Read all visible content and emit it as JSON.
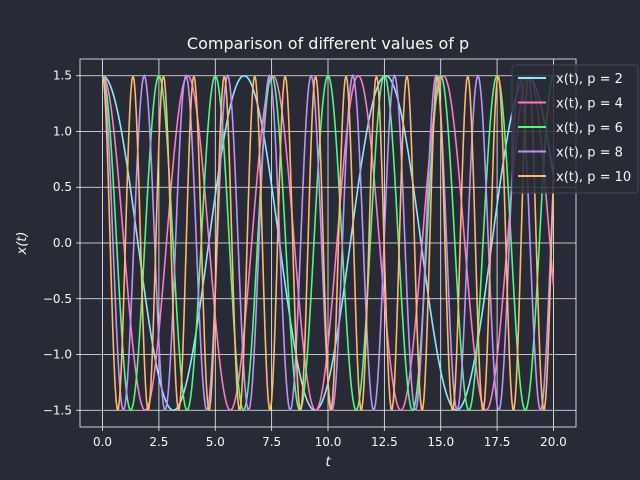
{
  "chart_data": {
    "type": "line",
    "title": "Comparison of different values of p",
    "xlabel": "t",
    "ylabel": "x(t)",
    "xlim": [
      -1.0,
      21.0
    ],
    "ylim": [
      -1.65,
      1.65
    ],
    "xticks": [
      0.0,
      2.5,
      5.0,
      7.5,
      10.0,
      12.5,
      15.0,
      17.5,
      20.0
    ],
    "xtick_labels": [
      "0.0",
      "2.5",
      "5.0",
      "7.5",
      "10.0",
      "12.5",
      "15.0",
      "17.5",
      "20.0"
    ],
    "yticks": [
      -1.5,
      -1.0,
      -0.5,
      0.0,
      0.5,
      1.0,
      1.5
    ],
    "ytick_labels": [
      "−1.5",
      "−1.0",
      "−0.5",
      "0.0",
      "0.5",
      "1.0",
      "1.5"
    ],
    "grid": true,
    "legend_position": "top-right",
    "x": {
      "start": 0,
      "end": 20,
      "samples": 400
    },
    "series": [
      {
        "name": "x(t), p = 2",
        "p": 2,
        "amplitude": 1.5,
        "period": 6.28,
        "color": "#8be9fd"
      },
      {
        "name": "x(t), p = 4",
        "p": 4,
        "amplitude": 1.5,
        "period": 3.78,
        "color": "#ff79c6"
      },
      {
        "name": "x(t), p = 6",
        "p": 6,
        "amplitude": 1.5,
        "period": 2.5,
        "color": "#50fa7b"
      },
      {
        "name": "x(t), p = 8",
        "p": 8,
        "amplitude": 1.5,
        "period": 1.85,
        "color": "#bd93f9"
      },
      {
        "name": "x(t), p = 10",
        "p": 10,
        "amplitude": 1.5,
        "period": 1.35,
        "color": "#ffb86c"
      }
    ]
  },
  "colors": {
    "background": "#282a36",
    "grid": "#f8f8f2",
    "text": "#f8f8f2"
  }
}
